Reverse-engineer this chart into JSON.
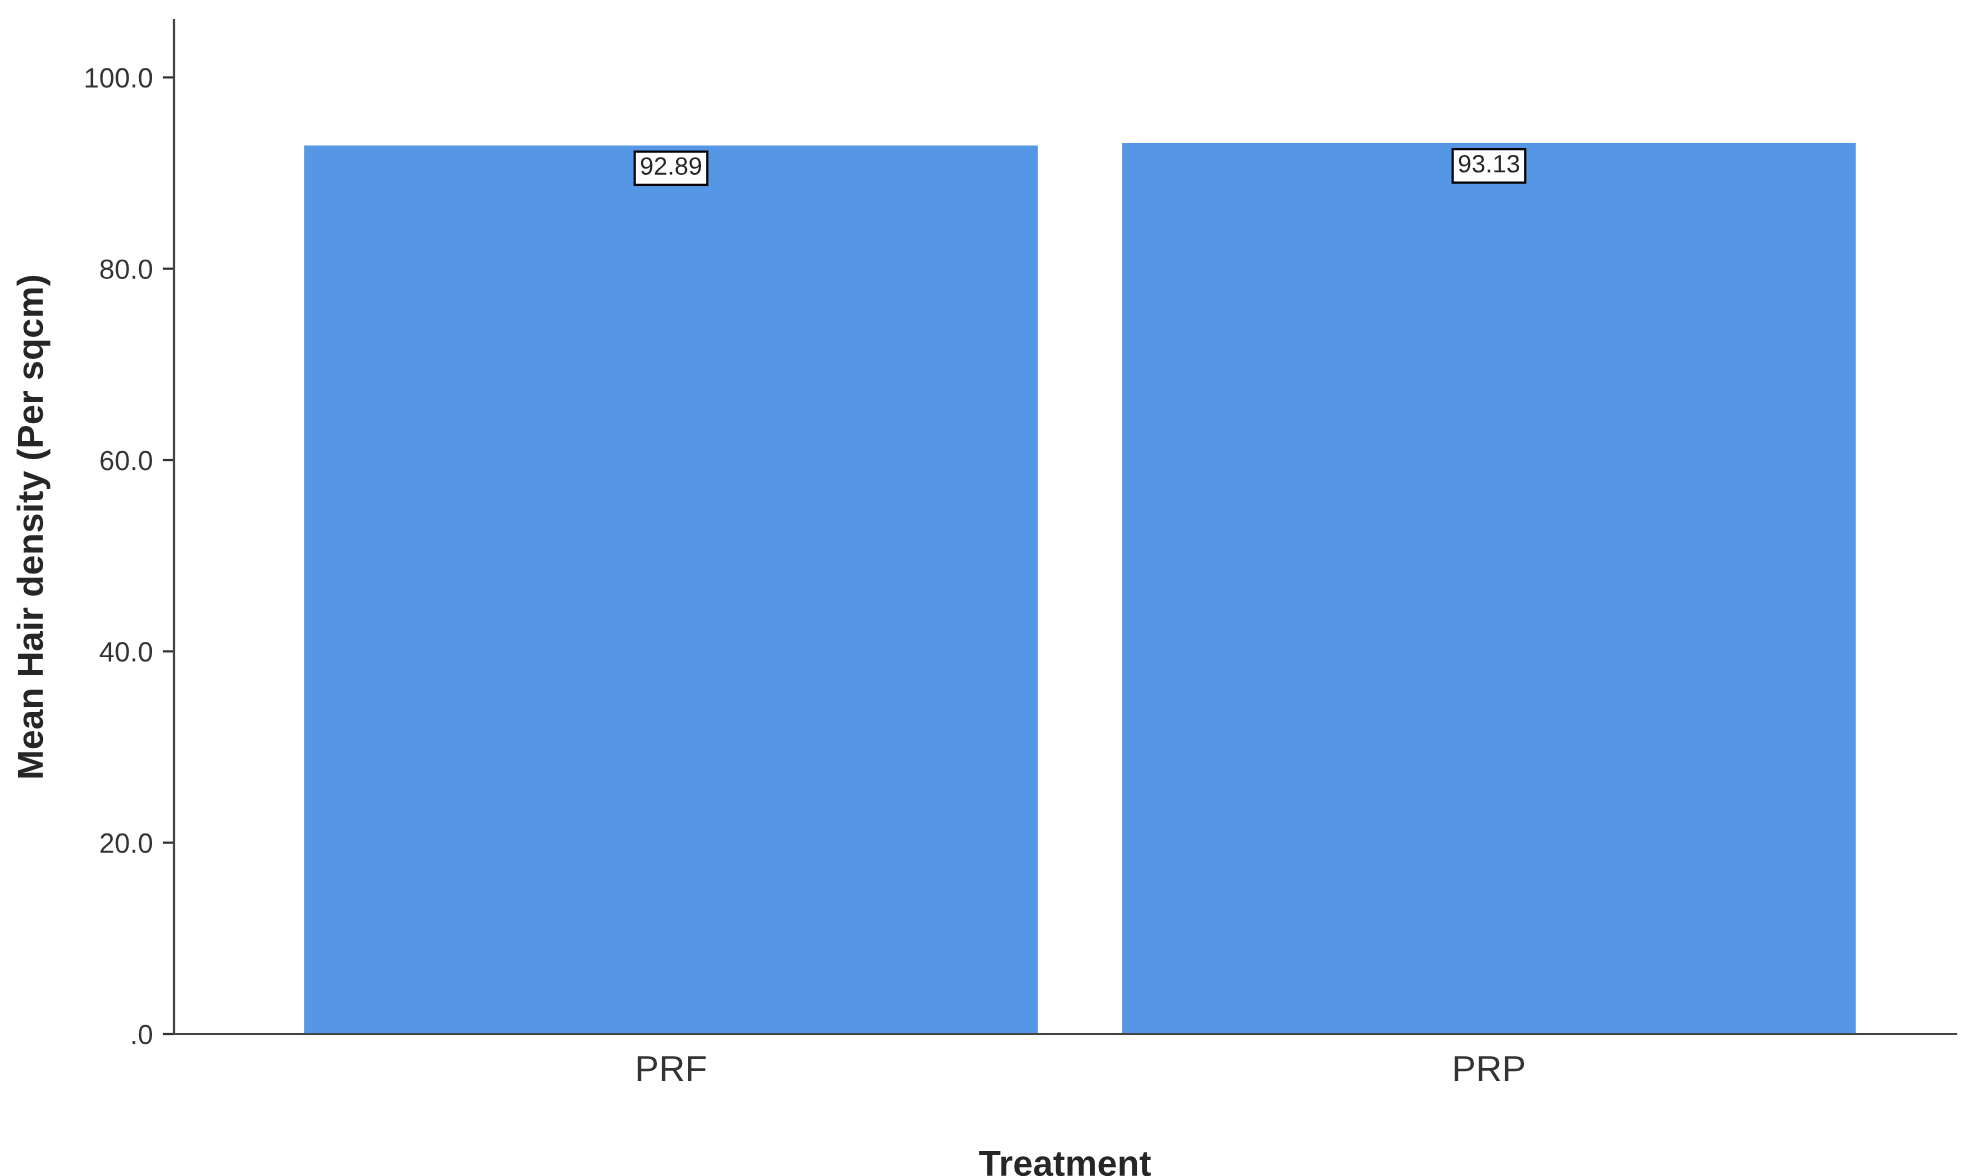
{
  "chart_data": {
    "type": "bar",
    "xlabel": "Treatment",
    "ylabel": "Mean Hair density (Per sqcm)",
    "categories": [
      "PRF",
      "PRP"
    ],
    "series": [
      {
        "color": "#5596e5",
        "values": [
          92.89,
          93.13
        ]
      }
    ],
    "data_labels": true,
    "ylim": [
      0,
      106
    ],
    "yticks": [
      {
        "value": 0,
        "label": ".0"
      },
      {
        "value": 20,
        "label": "20.0"
      },
      {
        "value": 40,
        "label": "40.0"
      },
      {
        "value": 60,
        "label": "60.0"
      },
      {
        "value": 80,
        "label": "80.0"
      },
      {
        "value": 100,
        "label": "100.0"
      }
    ],
    "grid": false,
    "legend": false
  }
}
